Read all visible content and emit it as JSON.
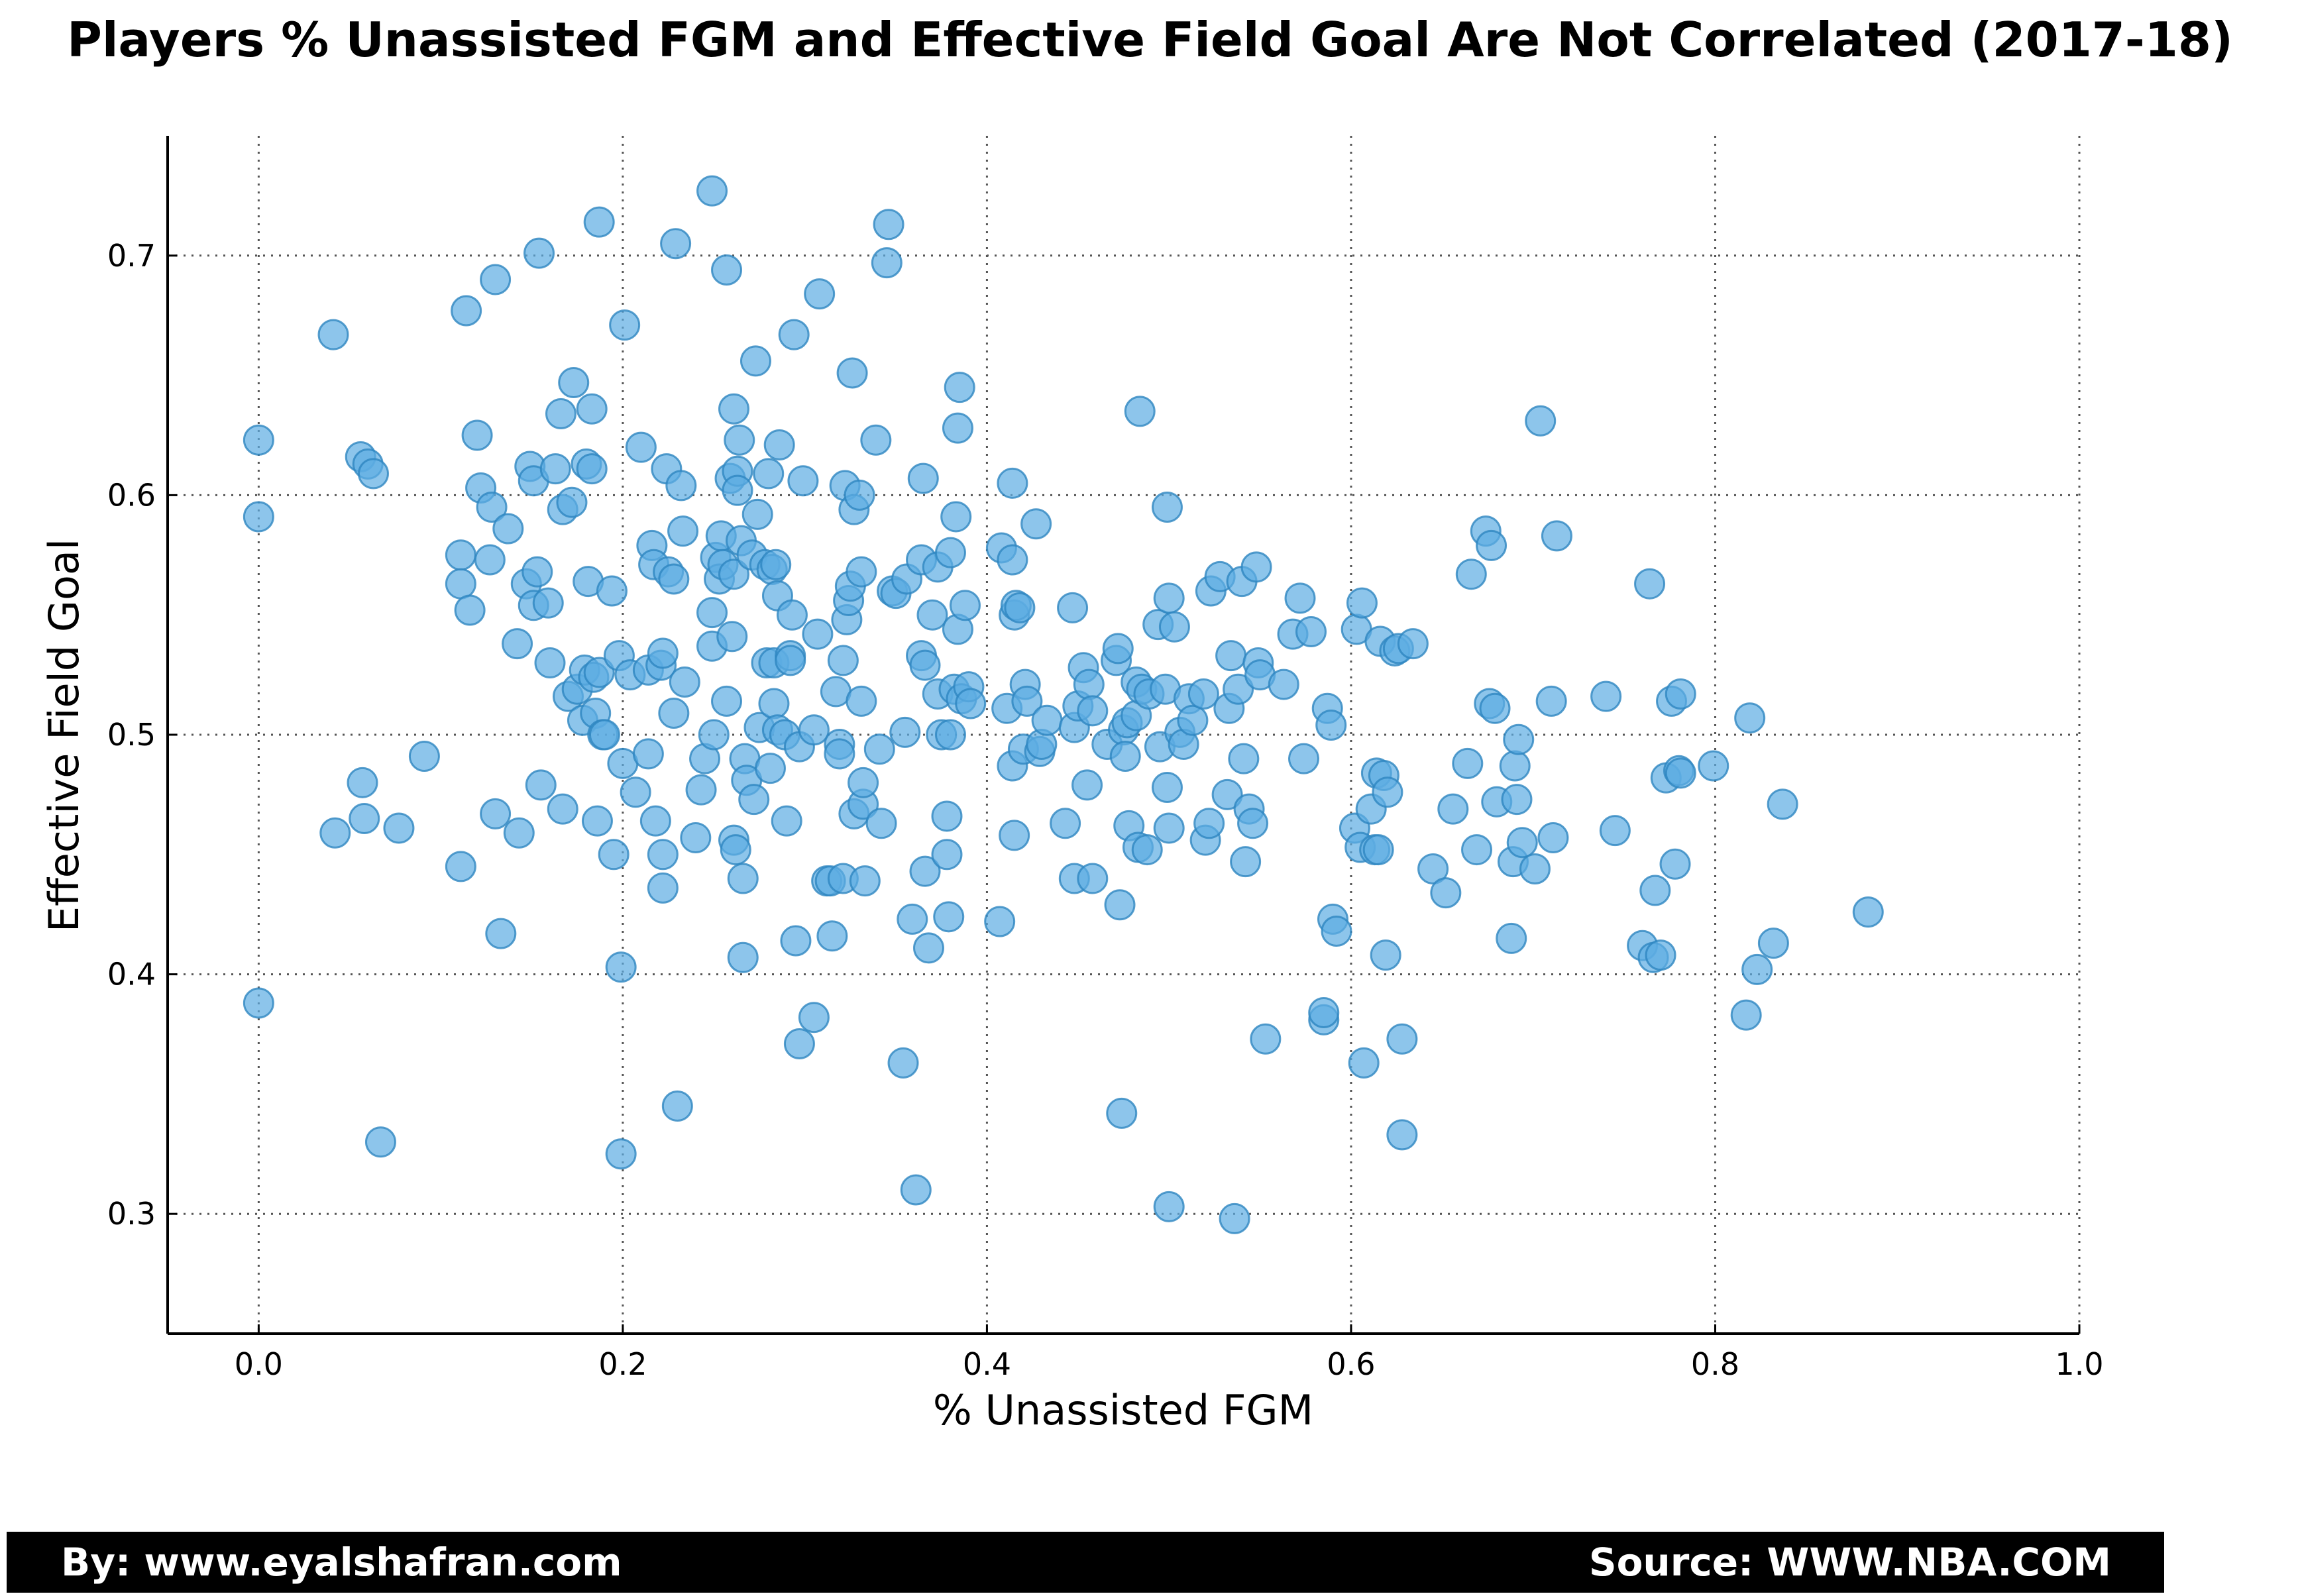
{
  "title": "Players % Unassisted FGM and Effective Field Goal Are Not Correlated (2017-18)",
  "footer": {
    "left": "By: www.eyalshafran.com",
    "right": "Source: WWW.NBA.COM"
  },
  "colors": {
    "point_fill": "#5dade2",
    "point_stroke": "#2e86c1",
    "footer_bg": "#000000",
    "footer_text": "#ffffff"
  },
  "chart_data": {
    "type": "scatter",
    "xlabel": "% Unassisted FGM",
    "ylabel": "Effective Field Goal",
    "xlim": [
      -0.05,
      1.0
    ],
    "ylim": [
      0.25,
      0.75
    ],
    "xticks": [
      "0.0",
      "0.2",
      "0.4",
      "0.6",
      "0.8",
      "1.0"
    ],
    "yticks": [
      "0.3",
      "0.4",
      "0.5",
      "0.6",
      "0.7"
    ],
    "grid": true,
    "points": [
      [
        0.0,
        0.623
      ],
      [
        0.0,
        0.591
      ],
      [
        0.0,
        0.388
      ],
      [
        0.041,
        0.667
      ],
      [
        0.042,
        0.459
      ],
      [
        0.056,
        0.616
      ],
      [
        0.057,
        0.48
      ],
      [
        0.058,
        0.465
      ],
      [
        0.06,
        0.613
      ],
      [
        0.063,
        0.609
      ],
      [
        0.067,
        0.33
      ],
      [
        0.077,
        0.461
      ],
      [
        0.091,
        0.491
      ],
      [
        0.111,
        0.445
      ],
      [
        0.111,
        0.575
      ],
      [
        0.111,
        0.563
      ],
      [
        0.114,
        0.677
      ],
      [
        0.116,
        0.552
      ],
      [
        0.12,
        0.625
      ],
      [
        0.122,
        0.603
      ],
      [
        0.127,
        0.573
      ],
      [
        0.128,
        0.595
      ],
      [
        0.13,
        0.69
      ],
      [
        0.13,
        0.467
      ],
      [
        0.133,
        0.417
      ],
      [
        0.137,
        0.586
      ],
      [
        0.142,
        0.538
      ],
      [
        0.143,
        0.459
      ],
      [
        0.147,
        0.563
      ],
      [
        0.149,
        0.612
      ],
      [
        0.151,
        0.606
      ],
      [
        0.151,
        0.554
      ],
      [
        0.153,
        0.568
      ],
      [
        0.154,
        0.701
      ],
      [
        0.155,
        0.479
      ],
      [
        0.159,
        0.555
      ],
      [
        0.16,
        0.53
      ],
      [
        0.163,
        0.611
      ],
      [
        0.166,
        0.634
      ],
      [
        0.167,
        0.469
      ],
      [
        0.167,
        0.594
      ],
      [
        0.17,
        0.516
      ],
      [
        0.172,
        0.597
      ],
      [
        0.173,
        0.647
      ],
      [
        0.175,
        0.519
      ],
      [
        0.178,
        0.506
      ],
      [
        0.179,
        0.527
      ],
      [
        0.18,
        0.613
      ],
      [
        0.181,
        0.564
      ],
      [
        0.183,
        0.636
      ],
      [
        0.183,
        0.611
      ],
      [
        0.184,
        0.524
      ],
      [
        0.185,
        0.509
      ],
      [
        0.186,
        0.464
      ],
      [
        0.187,
        0.526
      ],
      [
        0.187,
        0.714
      ],
      [
        0.189,
        0.5
      ],
      [
        0.19,
        0.5
      ],
      [
        0.194,
        0.56
      ],
      [
        0.195,
        0.45
      ],
      [
        0.198,
        0.533
      ],
      [
        0.199,
        0.325
      ],
      [
        0.199,
        0.403
      ],
      [
        0.2,
        0.488
      ],
      [
        0.201,
        0.671
      ],
      [
        0.204,
        0.525
      ],
      [
        0.207,
        0.476
      ],
      [
        0.21,
        0.62
      ],
      [
        0.214,
        0.527
      ],
      [
        0.214,
        0.492
      ],
      [
        0.216,
        0.579
      ],
      [
        0.217,
        0.571
      ],
      [
        0.218,
        0.464
      ],
      [
        0.221,
        0.529
      ],
      [
        0.222,
        0.534
      ],
      [
        0.222,
        0.45
      ],
      [
        0.222,
        0.436
      ],
      [
        0.224,
        0.611
      ],
      [
        0.225,
        0.568
      ],
      [
        0.228,
        0.565
      ],
      [
        0.228,
        0.509
      ],
      [
        0.229,
        0.705
      ],
      [
        0.23,
        0.345
      ],
      [
        0.232,
        0.604
      ],
      [
        0.233,
        0.585
      ],
      [
        0.234,
        0.522
      ],
      [
        0.24,
        0.457
      ],
      [
        0.243,
        0.477
      ],
      [
        0.245,
        0.49
      ],
      [
        0.249,
        0.727
      ],
      [
        0.249,
        0.537
      ],
      [
        0.249,
        0.551
      ],
      [
        0.25,
        0.5
      ],
      [
        0.251,
        0.574
      ],
      [
        0.253,
        0.565
      ],
      [
        0.254,
        0.583
      ],
      [
        0.255,
        0.571
      ],
      [
        0.257,
        0.694
      ],
      [
        0.257,
        0.514
      ],
      [
        0.259,
        0.607
      ],
      [
        0.26,
        0.541
      ],
      [
        0.261,
        0.636
      ],
      [
        0.261,
        0.567
      ],
      [
        0.261,
        0.456
      ],
      [
        0.262,
        0.452
      ],
      [
        0.263,
        0.61
      ],
      [
        0.263,
        0.602
      ],
      [
        0.264,
        0.623
      ],
      [
        0.265,
        0.581
      ],
      [
        0.266,
        0.407
      ],
      [
        0.266,
        0.44
      ],
      [
        0.267,
        0.49
      ],
      [
        0.268,
        0.481
      ],
      [
        0.271,
        0.575
      ],
      [
        0.272,
        0.473
      ],
      [
        0.273,
        0.656
      ],
      [
        0.274,
        0.592
      ],
      [
        0.275,
        0.503
      ],
      [
        0.278,
        0.571
      ],
      [
        0.279,
        0.53
      ],
      [
        0.28,
        0.609
      ],
      [
        0.281,
        0.486
      ],
      [
        0.282,
        0.569
      ],
      [
        0.283,
        0.53
      ],
      [
        0.283,
        0.513
      ],
      [
        0.284,
        0.571
      ],
      [
        0.285,
        0.502
      ],
      [
        0.285,
        0.558
      ],
      [
        0.286,
        0.621
      ],
      [
        0.289,
        0.5
      ],
      [
        0.29,
        0.464
      ],
      [
        0.292,
        0.533
      ],
      [
        0.292,
        0.531
      ],
      [
        0.293,
        0.55
      ],
      [
        0.294,
        0.667
      ],
      [
        0.295,
        0.414
      ],
      [
        0.297,
        0.371
      ],
      [
        0.297,
        0.495
      ],
      [
        0.299,
        0.606
      ],
      [
        0.305,
        0.502
      ],
      [
        0.305,
        0.382
      ],
      [
        0.307,
        0.542
      ],
      [
        0.308,
        0.684
      ],
      [
        0.312,
        0.439
      ],
      [
        0.314,
        0.439
      ],
      [
        0.315,
        0.416
      ],
      [
        0.317,
        0.518
      ],
      [
        0.319,
        0.496
      ],
      [
        0.319,
        0.492
      ],
      [
        0.321,
        0.44
      ],
      [
        0.321,
        0.531
      ],
      [
        0.322,
        0.604
      ],
      [
        0.323,
        0.548
      ],
      [
        0.324,
        0.556
      ],
      [
        0.325,
        0.562
      ],
      [
        0.326,
        0.651
      ],
      [
        0.327,
        0.467
      ],
      [
        0.327,
        0.594
      ],
      [
        0.33,
        0.6
      ],
      [
        0.331,
        0.568
      ],
      [
        0.331,
        0.514
      ],
      [
        0.332,
        0.471
      ],
      [
        0.332,
        0.48
      ],
      [
        0.333,
        0.439
      ],
      [
        0.339,
        0.623
      ],
      [
        0.341,
        0.494
      ],
      [
        0.342,
        0.463
      ],
      [
        0.345,
        0.697
      ],
      [
        0.346,
        0.713
      ],
      [
        0.348,
        0.56
      ],
      [
        0.35,
        0.559
      ],
      [
        0.354,
        0.363
      ],
      [
        0.355,
        0.501
      ],
      [
        0.356,
        0.565
      ],
      [
        0.359,
        0.423
      ],
      [
        0.361,
        0.31
      ],
      [
        0.364,
        0.573
      ],
      [
        0.364,
        0.533
      ],
      [
        0.365,
        0.607
      ],
      [
        0.366,
        0.529
      ],
      [
        0.366,
        0.443
      ],
      [
        0.368,
        0.411
      ],
      [
        0.37,
        0.55
      ],
      [
        0.373,
        0.57
      ],
      [
        0.373,
        0.517
      ],
      [
        0.375,
        0.5
      ],
      [
        0.378,
        0.466
      ],
      [
        0.378,
        0.45
      ],
      [
        0.379,
        0.424
      ],
      [
        0.38,
        0.5
      ],
      [
        0.38,
        0.576
      ],
      [
        0.382,
        0.519
      ],
      [
        0.383,
        0.591
      ],
      [
        0.384,
        0.628
      ],
      [
        0.384,
        0.544
      ],
      [
        0.385,
        0.645
      ],
      [
        0.386,
        0.515
      ],
      [
        0.388,
        0.554
      ],
      [
        0.39,
        0.52
      ],
      [
        0.391,
        0.513
      ],
      [
        0.407,
        0.422
      ],
      [
        0.408,
        0.578
      ],
      [
        0.411,
        0.511
      ],
      [
        0.414,
        0.573
      ],
      [
        0.414,
        0.487
      ],
      [
        0.414,
        0.605
      ],
      [
        0.415,
        0.458
      ],
      [
        0.415,
        0.55
      ],
      [
        0.416,
        0.554
      ],
      [
        0.418,
        0.553
      ],
      [
        0.42,
        0.494
      ],
      [
        0.421,
        0.521
      ],
      [
        0.422,
        0.514
      ],
      [
        0.427,
        0.588
      ],
      [
        0.429,
        0.493
      ],
      [
        0.43,
        0.496
      ],
      [
        0.433,
        0.506
      ],
      [
        0.443,
        0.463
      ],
      [
        0.447,
        0.553
      ],
      [
        0.448,
        0.503
      ],
      [
        0.448,
        0.44
      ],
      [
        0.45,
        0.512
      ],
      [
        0.453,
        0.528
      ],
      [
        0.455,
        0.479
      ],
      [
        0.456,
        0.521
      ],
      [
        0.458,
        0.51
      ],
      [
        0.458,
        0.44
      ],
      [
        0.466,
        0.496
      ],
      [
        0.471,
        0.531
      ],
      [
        0.472,
        0.536
      ],
      [
        0.473,
        0.429
      ],
      [
        0.474,
        0.342
      ],
      [
        0.475,
        0.502
      ],
      [
        0.476,
        0.491
      ],
      [
        0.477,
        0.505
      ],
      [
        0.478,
        0.462
      ],
      [
        0.482,
        0.508
      ],
      [
        0.482,
        0.522
      ],
      [
        0.483,
        0.453
      ],
      [
        0.484,
        0.635
      ],
      [
        0.485,
        0.519
      ],
      [
        0.488,
        0.452
      ],
      [
        0.489,
        0.517
      ],
      [
        0.494,
        0.546
      ],
      [
        0.495,
        0.495
      ],
      [
        0.498,
        0.519
      ],
      [
        0.499,
        0.478
      ],
      [
        0.499,
        0.595
      ],
      [
        0.5,
        0.557
      ],
      [
        0.5,
        0.461
      ],
      [
        0.5,
        0.303
      ],
      [
        0.503,
        0.545
      ],
      [
        0.506,
        0.501
      ],
      [
        0.508,
        0.496
      ],
      [
        0.511,
        0.515
      ],
      [
        0.513,
        0.506
      ],
      [
        0.519,
        0.517
      ],
      [
        0.52,
        0.456
      ],
      [
        0.522,
        0.463
      ],
      [
        0.523,
        0.56
      ],
      [
        0.528,
        0.566
      ],
      [
        0.532,
        0.475
      ],
      [
        0.533,
        0.511
      ],
      [
        0.534,
        0.533
      ],
      [
        0.536,
        0.298
      ],
      [
        0.538,
        0.519
      ],
      [
        0.54,
        0.564
      ],
      [
        0.541,
        0.49
      ],
      [
        0.542,
        0.447
      ],
      [
        0.544,
        0.469
      ],
      [
        0.546,
        0.463
      ],
      [
        0.548,
        0.57
      ],
      [
        0.549,
        0.53
      ],
      [
        0.55,
        0.525
      ],
      [
        0.553,
        0.373
      ],
      [
        0.563,
        0.521
      ],
      [
        0.568,
        0.542
      ],
      [
        0.572,
        0.557
      ],
      [
        0.574,
        0.49
      ],
      [
        0.578,
        0.543
      ],
      [
        0.585,
        0.381
      ],
      [
        0.585,
        0.384
      ],
      [
        0.587,
        0.511
      ],
      [
        0.589,
        0.504
      ],
      [
        0.59,
        0.423
      ],
      [
        0.592,
        0.418
      ],
      [
        0.602,
        0.461
      ],
      [
        0.603,
        0.544
      ],
      [
        0.605,
        0.453
      ],
      [
        0.606,
        0.555
      ],
      [
        0.607,
        0.363
      ],
      [
        0.611,
        0.469
      ],
      [
        0.613,
        0.452
      ],
      [
        0.614,
        0.484
      ],
      [
        0.615,
        0.452
      ],
      [
        0.616,
        0.539
      ],
      [
        0.618,
        0.483
      ],
      [
        0.619,
        0.408
      ],
      [
        0.62,
        0.476
      ],
      [
        0.624,
        0.535
      ],
      [
        0.626,
        0.536
      ],
      [
        0.628,
        0.373
      ],
      [
        0.628,
        0.333
      ],
      [
        0.634,
        0.538
      ],
      [
        0.645,
        0.444
      ],
      [
        0.652,
        0.434
      ],
      [
        0.656,
        0.469
      ],
      [
        0.664,
        0.488
      ],
      [
        0.666,
        0.567
      ],
      [
        0.669,
        0.452
      ],
      [
        0.674,
        0.585
      ],
      [
        0.676,
        0.513
      ],
      [
        0.677,
        0.579
      ],
      [
        0.679,
        0.511
      ],
      [
        0.68,
        0.472
      ],
      [
        0.688,
        0.415
      ],
      [
        0.689,
        0.447
      ],
      [
        0.69,
        0.487
      ],
      [
        0.691,
        0.473
      ],
      [
        0.692,
        0.498
      ],
      [
        0.694,
        0.455
      ],
      [
        0.701,
        0.444
      ],
      [
        0.704,
        0.631
      ],
      [
        0.71,
        0.514
      ],
      [
        0.711,
        0.457
      ],
      [
        0.713,
        0.583
      ],
      [
        0.74,
        0.516
      ],
      [
        0.745,
        0.46
      ],
      [
        0.76,
        0.412
      ],
      [
        0.764,
        0.563
      ],
      [
        0.766,
        0.407
      ],
      [
        0.767,
        0.435
      ],
      [
        0.77,
        0.408
      ],
      [
        0.773,
        0.482
      ],
      [
        0.776,
        0.514
      ],
      [
        0.778,
        0.446
      ],
      [
        0.78,
        0.485
      ],
      [
        0.781,
        0.484
      ],
      [
        0.781,
        0.517
      ],
      [
        0.799,
        0.487
      ],
      [
        0.817,
        0.383
      ],
      [
        0.819,
        0.507
      ],
      [
        0.823,
        0.402
      ],
      [
        0.832,
        0.413
      ],
      [
        0.837,
        0.471
      ],
      [
        0.884,
        0.426
      ]
    ]
  }
}
